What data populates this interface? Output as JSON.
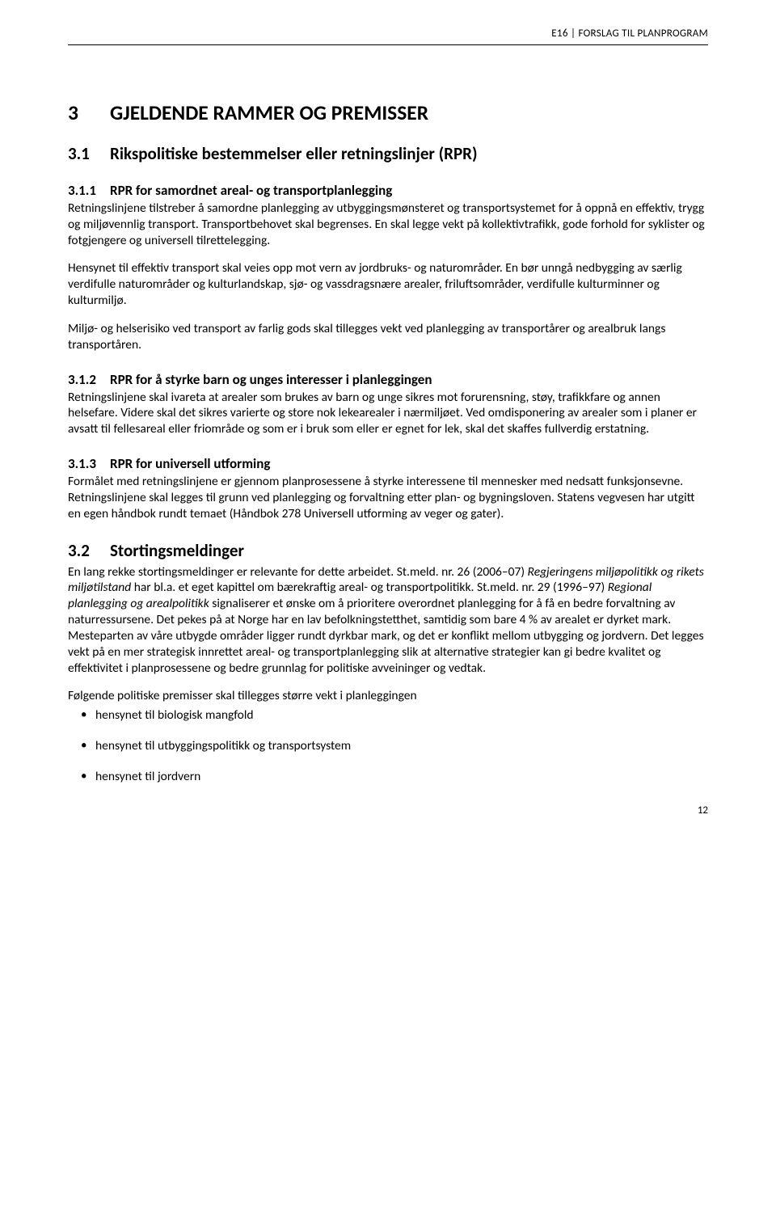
{
  "colors": {
    "background": "#ffffff",
    "text": "#000000",
    "rule": "#000000"
  },
  "typography": {
    "body_fontsize_pt": 11.5,
    "h1_fontsize_pt": 19,
    "h2_fontsize_pt": 16,
    "h3_fontsize_pt": 13,
    "header_fontsize_pt": 10,
    "font_family": "Calibri"
  },
  "header": {
    "right_text": "E16 | FORSLAG TIL PLANPROGRAM"
  },
  "h1": {
    "num": "3",
    "title": "GJELDENDE RAMMER OG PREMISSER"
  },
  "h2_31": {
    "num": "3.1",
    "title": "Rikspolitiske bestemmelser eller retningslinjer (RPR)"
  },
  "h3_311": {
    "num": "3.1.1",
    "title": "RPR for samordnet areal- og transportplanlegging"
  },
  "p311a": "Retningslinjene tilstreber å samordne planlegging av utbyggingsmønsteret og transportsystemet for å oppnå en effektiv, trygg og miljøvennlig transport. Transportbehovet skal begrenses. En skal legge vekt på kollektivtrafikk, gode forhold for syklister og fotgjengere og universell tilrettelegging.",
  "p311b": "Hensynet til effektiv transport skal veies opp mot vern av jordbruks- og naturområder. En bør unngå nedbygging av særlig verdifulle naturområder og kulturlandskap, sjø- og vassdragsnære arealer, friluftsområder, verdifulle kulturminner og kulturmiljø.",
  "p311c": "Miljø- og helserisiko ved transport av farlig gods skal tillegges vekt ved planlegging av transportårer og arealbruk langs transportåren.",
  "h3_312": {
    "num": "3.1.2",
    "title": "RPR for å styrke barn og unges interesser i planleggingen"
  },
  "p312a": "Retningslinjene skal ivareta at arealer som brukes av barn og unge sikres mot forurensning, støy, trafikkfare og annen helsefare. Videre skal det sikres varierte og store nok lekearealer i nærmiljøet. Ved omdisponering av arealer som i planer er avsatt til fellesareal eller friområde og som er i bruk som eller er egnet for lek, skal det skaffes fullverdig erstatning.",
  "h3_313": {
    "num": "3.1.3",
    "title": "RPR for universell utforming"
  },
  "p313a": "Formålet med retningslinjene er gjennom planprosessene å styrke interessene til mennesker med nedsatt funksjonsevne. Retningslinjene skal legges til grunn ved planlegging og forvaltning etter plan- og bygningsloven. Statens vegvesen har utgitt en egen håndbok rundt temaet (Håndbok 278 Universell utforming av veger og gater).",
  "h2_32": {
    "num": "3.2",
    "title": "Stortingsmeldinger"
  },
  "p32a_1": "En lang rekke stortingsmeldinger er relevante for dette arbeidet. St.meld. nr. 26 (2006–07) ",
  "p32a_italic1": "Regjeringens miljøpolitikk og rikets miljøtilstand",
  "p32a_2": " har bl.a. et eget kapittel om bærekraftig areal- og transportpolitikk. St.meld. nr. 29 (1996–97) ",
  "p32a_italic2": "Regional planlegging og arealpolitikk",
  "p32a_3": " signaliserer et ønske om å prioritere overordnet planlegging for å få en bedre forvaltning av naturressursene. Det pekes på at Norge har en lav befolkningstetthet, samtidig som bare 4 % av arealet er dyrket mark. Mesteparten av våre utbygde områder ligger rundt dyrkbar mark, og det er konflikt mellom utbygging og jordvern. Det legges vekt på en mer strategisk innrettet areal- og transportplanlegging slik at alternative strategier kan gi bedre kvalitet og effektivitet i planprosessene og bedre grunnlag for politiske avveininger og vedtak.",
  "p32b": "Følgende politiske premisser skal tillegges større vekt i planleggingen",
  "bullets": [
    "hensynet til biologisk mangfold",
    "hensynet til utbyggingspolitikk og transportsystem",
    "hensynet til jordvern"
  ],
  "page_number": "12"
}
